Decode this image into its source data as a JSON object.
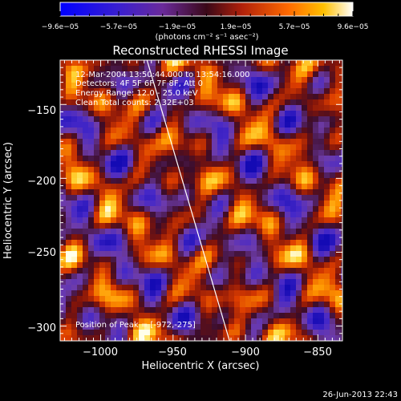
{
  "chart_data": {
    "type": "heatmap",
    "title": "Reconstructed RHESSI Image",
    "xlabel": "Heliocentric X (arcsec)",
    "ylabel": "Heliocentric Y (arcsec)",
    "xlim": [
      -1028,
      -833
    ],
    "ylim": [
      -310,
      -120
    ],
    "x_ticks": [
      -1000,
      -950,
      -900,
      -850
    ],
    "x_tick_labels": [
      "−1000",
      "−950",
      "−900",
      "−850"
    ],
    "y_ticks": [
      -150,
      -200,
      -250,
      -300
    ],
    "y_tick_labels": [
      "−150",
      "−200",
      "−250",
      "−300"
    ],
    "colorbar": {
      "range": [
        -9.6e-05,
        9.6e-05
      ],
      "tick_labels": [
        "−9.6e−05",
        "−5.7e−05",
        "−1.9e−05",
        "1.9e−05",
        "5.7e−05",
        "9.6e−05"
      ],
      "units_label": "(photons cm⁻² s⁻¹ asec⁻²)"
    },
    "annotations": {
      "time": "12-Mar-2004 13:50:44.000 to 13:54:16.000",
      "detectors": "Detectors: 4F 5F 6F 7F 8F, Att 0",
      "energy": "Energy Range: 12.0 - 25.0 keV",
      "clean": "Clean    Total counts: 2.32E+03",
      "peak": "Position of Peak = [-972,-275]"
    },
    "limb_line": {
      "x": [
        -968,
        -911
      ],
      "y": [
        -120,
        -310
      ]
    },
    "grid": false,
    "colors": {
      "background": "#000000",
      "axes": "#ffffff",
      "limb": "#ffffff"
    }
  },
  "footer": {
    "timestamp": "26-Jun-2013 22:43"
  }
}
